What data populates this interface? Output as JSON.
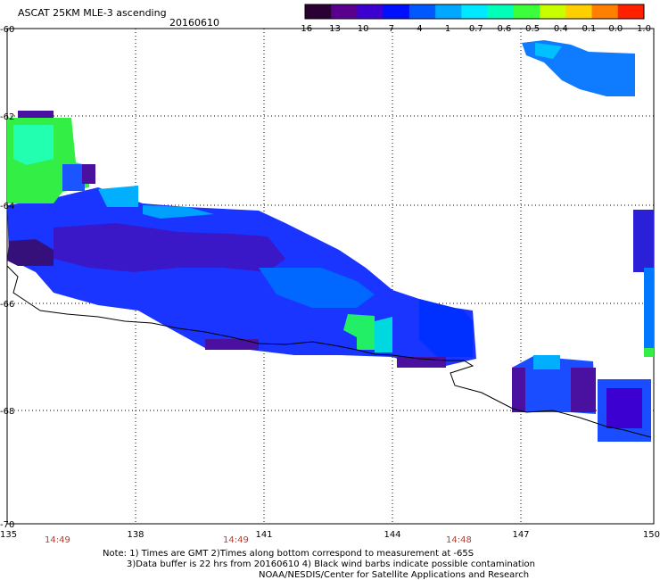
{
  "title": "ASCAT 25KM MLE-3 ascending",
  "date": "20160610",
  "colorbar": {
    "labels": [
      "-16",
      "-13",
      "-10",
      "-7",
      "-4",
      "-1",
      "-0.7",
      "-0.6",
      "-0.5",
      "-0.4",
      "-0.1",
      "0.0",
      "1.0"
    ],
    "colors": [
      "#2b0033",
      "#5a008f",
      "#3c00d0",
      "#0010ff",
      "#0058ff",
      "#00a8ff",
      "#00e8ff",
      "#00ffb8",
      "#3cff3c",
      "#c8ff00",
      "#ffd000",
      "#ff8000",
      "#ff2000"
    ]
  },
  "y_axis_labels": [
    "-60",
    "-62",
    "-64",
    "-66",
    "-68",
    "-70"
  ],
  "x_axis_labels": [
    "135",
    "138",
    "141",
    "144",
    "147",
    "150"
  ],
  "time_labels": [
    "14:49",
    "14:49",
    "14:48"
  ],
  "notes": [
    "Note: 1) Times are GMT 2)Times along bottom correspond to measurement at -65S",
    "3)Data buffer is 22 hrs from 20160610 4) Black wind barbs indicate possible contamination",
    "NOAA/NESDIS/Center for Satellite Applications and Research"
  ]
}
